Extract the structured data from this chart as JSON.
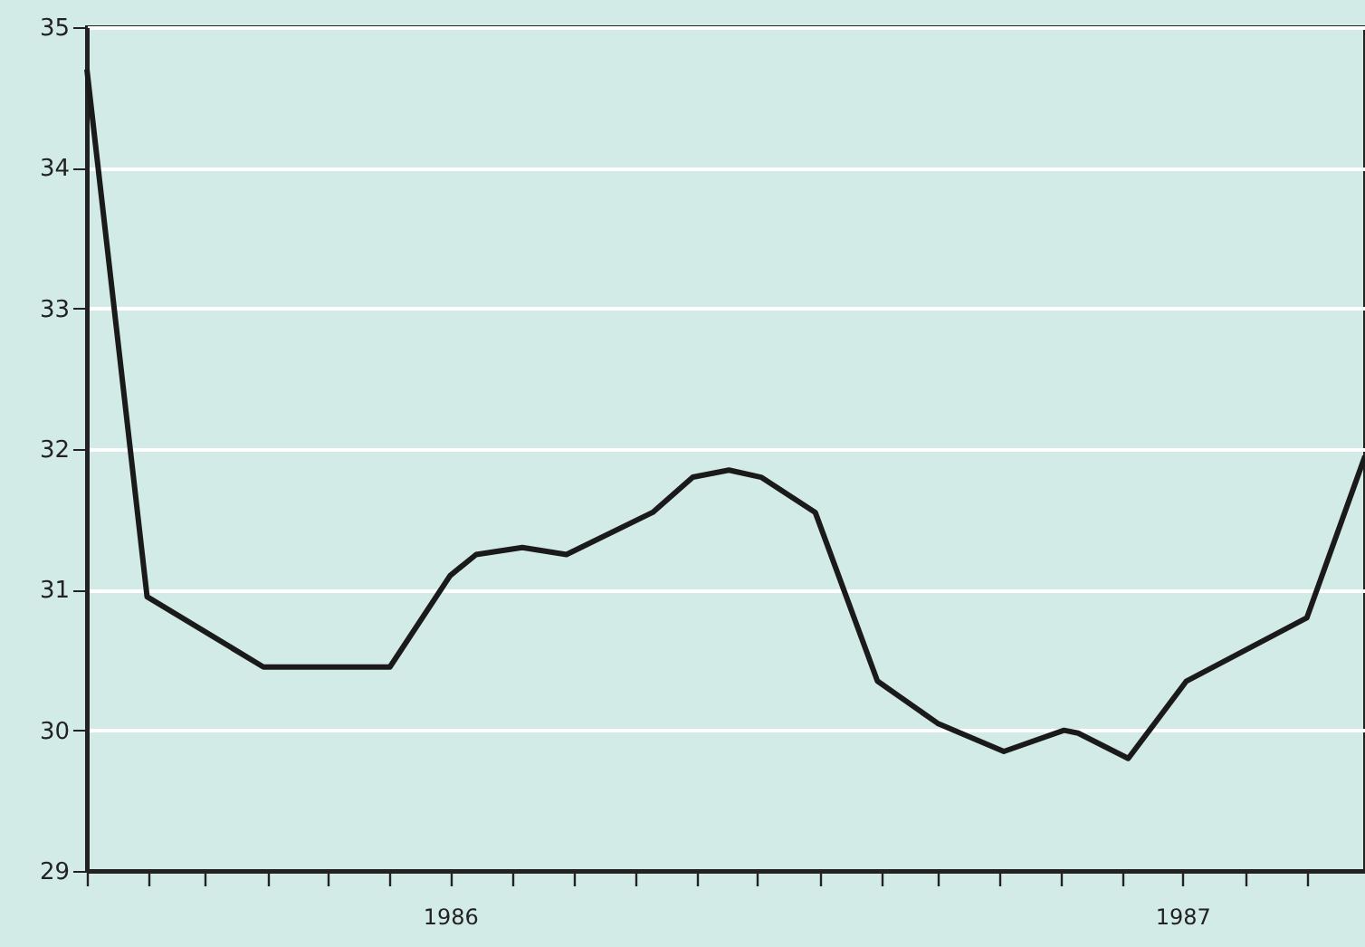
{
  "chart_data": {
    "type": "line",
    "x": [
      "1986-01-01",
      "1986-01-31",
      "1986-03-30",
      "1986-06-01",
      "1986-07-01",
      "1986-07-14",
      "1986-08-06",
      "1986-08-28",
      "1986-10-10",
      "1986-10-30",
      "1986-11-17",
      "1986-12-03",
      "1986-12-30",
      "1987-01-30",
      "1987-03-01",
      "1987-04-03",
      "1987-05-03",
      "1987-05-10",
      "1987-06-04",
      "1987-07-03",
      "1987-09-01",
      "1987-09-30"
    ],
    "series": [
      {
        "color": "#1a1a1a",
        "values": [
          34.7,
          30.95,
          30.45,
          30.45,
          31.1,
          31.25,
          31.3,
          31.25,
          31.55,
          31.8,
          31.85,
          31.8,
          31.55,
          30.35,
          30.05,
          29.85,
          30.0,
          29.98,
          29.8,
          30.35,
          30.8,
          31.95
        ]
      }
    ],
    "xlim": [
      "1986-01-01",
      "1987-09-30"
    ],
    "xticks": [
      {
        "value": "1986-01-01",
        "label": null
      },
      {
        "value": "1986-02-01",
        "label": null
      },
      {
        "value": "1986-03-01",
        "label": null
      },
      {
        "value": "1986-04-01",
        "label": null
      },
      {
        "value": "1986-05-01",
        "label": null
      },
      {
        "value": "1986-06-01",
        "label": null
      },
      {
        "value": "1986-07-01",
        "label": "1986"
      },
      {
        "value": "1986-08-01",
        "label": null
      },
      {
        "value": "1986-09-01",
        "label": null
      },
      {
        "value": "1986-10-01",
        "label": null
      },
      {
        "value": "1986-11-01",
        "label": null
      },
      {
        "value": "1986-12-01",
        "label": null
      },
      {
        "value": "1987-01-01",
        "label": null
      },
      {
        "value": "1987-02-01",
        "label": null
      },
      {
        "value": "1987-03-01",
        "label": null
      },
      {
        "value": "1987-04-01",
        "label": null
      },
      {
        "value": "1987-05-01",
        "label": null
      },
      {
        "value": "1987-06-01",
        "label": null
      },
      {
        "value": "1987-07-01",
        "label": "1987"
      },
      {
        "value": "1987-08-01",
        "label": null
      },
      {
        "value": "1987-09-01",
        "label": null
      }
    ],
    "ylim": [
      29,
      35
    ],
    "yticks": [
      29,
      30,
      31,
      32,
      33,
      34,
      35
    ],
    "grid": "y",
    "line_style": "solid"
  }
}
